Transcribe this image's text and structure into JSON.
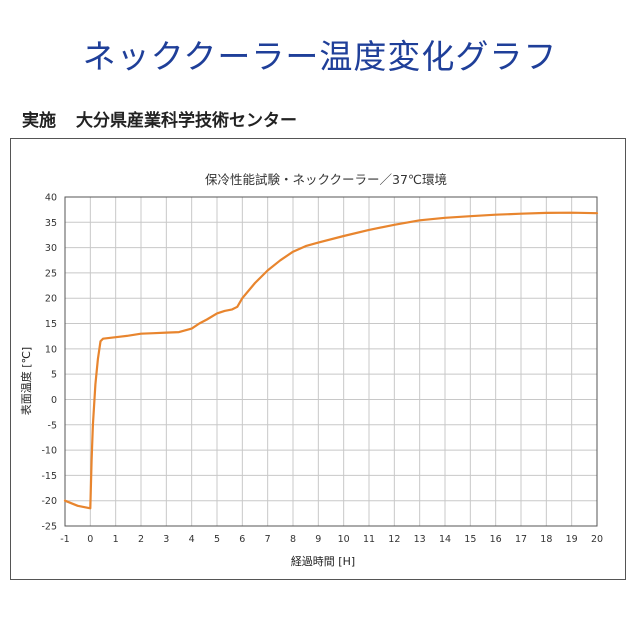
{
  "page": {
    "headline": "ネッククーラー温度変化グラフ",
    "source_prefix": "実施",
    "source_org": "大分県産業科学技術センター"
  },
  "colors": {
    "headline": "#1f3f99",
    "line": "#e8852e",
    "grid": "#c8c8c8",
    "axis": "#555555"
  },
  "chart_data": {
    "type": "line",
    "title": "保冷性能試験・ネッククーラー／37℃環境",
    "xlabel": "経過時間 [H]",
    "ylabel": "表面温度 [℃]",
    "xlim": [
      -1,
      20
    ],
    "ylim": [
      -25,
      40
    ],
    "xticks": [
      -1,
      0,
      1,
      2,
      3,
      4,
      5,
      6,
      7,
      8,
      9,
      10,
      11,
      12,
      13,
      14,
      15,
      16,
      17,
      18,
      19,
      20
    ],
    "yticks": [
      40,
      35,
      30,
      25,
      20,
      15,
      10,
      5,
      0,
      -5,
      -10,
      -15,
      -20,
      -25
    ],
    "grid": true,
    "series": [
      {
        "x": [
          -1,
          -0.5,
          0,
          0.05,
          0.1,
          0.2,
          0.3,
          0.4,
          0.5,
          1,
          1.5,
          2,
          2.5,
          3,
          3.5,
          4,
          4.3,
          4.6,
          5,
          5.3,
          5.6,
          5.8,
          6,
          6.5,
          7,
          7.5,
          8,
          8.5,
          9,
          10,
          11,
          12,
          13,
          14,
          15,
          16,
          17,
          18,
          19,
          20
        ],
        "y": [
          -20,
          -21,
          -21.5,
          -12,
          -5,
          3,
          8,
          11.5,
          12,
          12.3,
          12.6,
          13,
          13.1,
          13.2,
          13.3,
          14,
          15,
          15.8,
          17,
          17.5,
          17.8,
          18.3,
          20,
          23,
          25.5,
          27.5,
          29.2,
          30.3,
          31,
          32.3,
          33.5,
          34.5,
          35.4,
          35.9,
          36.2,
          36.5,
          36.7,
          36.85,
          36.9,
          36.8
        ]
      }
    ]
  }
}
